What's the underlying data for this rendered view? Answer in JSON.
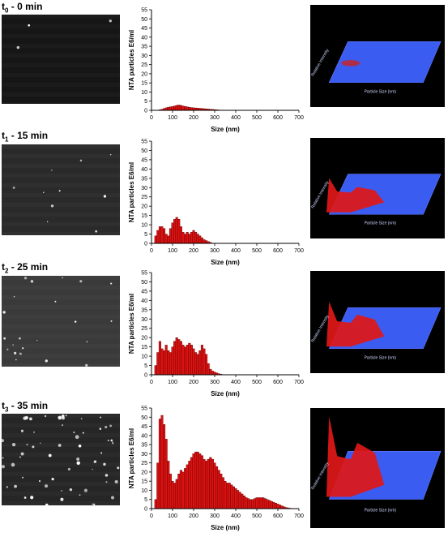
{
  "panels": [
    {
      "label_prefix": "t",
      "label_sub": "0",
      "label_rest": " - 0 min",
      "micrograph_density": "low",
      "chart_data": {
        "type": "bar",
        "xlabel": "Size (nm)",
        "ylabel": "NTA particles E6/ml",
        "xlim": [
          0,
          700
        ],
        "ylim": [
          0,
          55
        ],
        "xticks": [
          0,
          100,
          200,
          300,
          400,
          500,
          600,
          700
        ],
        "yticks": [
          0,
          5,
          10,
          15,
          20,
          25,
          30,
          35,
          40,
          45,
          50,
          55
        ],
        "bin_width": 10,
        "x": [
          40,
          50,
          60,
          70,
          80,
          90,
          100,
          110,
          120,
          130,
          140,
          150,
          160,
          170,
          180,
          190,
          200,
          210,
          220,
          230,
          240,
          250,
          260,
          270,
          280,
          290,
          300,
          310,
          320,
          330
        ],
        "values": [
          0.3,
          0.6,
          1.0,
          1.4,
          1.7,
          1.9,
          2.1,
          2.4,
          2.7,
          2.9,
          2.7,
          2.4,
          2.1,
          1.9,
          1.7,
          1.5,
          1.4,
          1.3,
          1.2,
          1.1,
          1.0,
          0.9,
          0.8,
          0.7,
          0.6,
          0.5,
          0.4,
          0.3,
          0.2,
          0.1
        ],
        "bar_color": "#dd1111"
      },
      "surface_labels": {
        "y": "Relative Intensity",
        "x": "Particle Size (nm)"
      },
      "surface_peaks": "low"
    },
    {
      "label_prefix": "t",
      "label_sub": "1",
      "label_rest": " - 15 min",
      "micrograph_density": "medium-low",
      "chart_data": {
        "type": "bar",
        "xlabel": "Size (nm)",
        "ylabel": "NTA particles E6/ml",
        "xlim": [
          0,
          700
        ],
        "ylim": [
          0,
          55
        ],
        "xticks": [
          0,
          100,
          200,
          300,
          400,
          500,
          600,
          700
        ],
        "yticks": [
          0,
          5,
          10,
          15,
          20,
          25,
          30,
          35,
          40,
          45,
          50,
          55
        ],
        "bin_width": 10,
        "x": [
          20,
          30,
          40,
          50,
          60,
          70,
          80,
          90,
          100,
          110,
          120,
          130,
          140,
          150,
          160,
          170,
          180,
          190,
          200,
          210,
          220,
          230,
          240,
          250,
          260,
          270,
          280
        ],
        "values": [
          4,
          7,
          9,
          9,
          8,
          5,
          4,
          8,
          11,
          13,
          14,
          13,
          9,
          6,
          5,
          6,
          5,
          6,
          7,
          6,
          5,
          4,
          3,
          2,
          1.5,
          1,
          0.5
        ],
        "bar_color": "#dd1111"
      },
      "surface_labels": {
        "y": "Relative Intensity",
        "x": "Particle Size (nm)"
      },
      "surface_peaks": "medium"
    },
    {
      "label_prefix": "t",
      "label_sub": "2",
      "label_rest": " - 25 min",
      "micrograph_density": "medium",
      "chart_data": {
        "type": "bar",
        "xlabel": "Size (nm)",
        "ylabel": "NTA particles E6/ml",
        "xlim": [
          0,
          700
        ],
        "ylim": [
          0,
          55
        ],
        "xticks": [
          0,
          100,
          200,
          300,
          400,
          500,
          600,
          700
        ],
        "yticks": [
          0,
          5,
          10,
          15,
          20,
          25,
          30,
          35,
          40,
          45,
          50,
          55
        ],
        "bin_width": 10,
        "x": [
          20,
          30,
          40,
          50,
          60,
          70,
          80,
          90,
          100,
          110,
          120,
          130,
          140,
          150,
          160,
          170,
          180,
          190,
          200,
          210,
          220,
          230,
          240,
          250,
          260,
          270,
          280,
          290,
          300,
          310,
          320,
          330
        ],
        "values": [
          5,
          12,
          18,
          14,
          13,
          16,
          13,
          12,
          15,
          18,
          20,
          19,
          18,
          16,
          15,
          16,
          17,
          16,
          14,
          12,
          11,
          13,
          16,
          14,
          11,
          6,
          3,
          2,
          1.5,
          1,
          0.6,
          0.3
        ],
        "bar_color": "#dd1111"
      },
      "surface_labels": {
        "y": "Relative Intensity",
        "x": "Particle Size (nm)"
      },
      "surface_peaks": "high"
    },
    {
      "label_prefix": "t",
      "label_sub": "3",
      "label_rest": " - 35 min",
      "micrograph_density": "high",
      "chart_data": {
        "type": "bar",
        "xlabel": "Size (nm)",
        "ylabel": "NTA particles E6/ml",
        "xlim": [
          0,
          700
        ],
        "ylim": [
          0,
          55
        ],
        "xticks": [
          0,
          100,
          200,
          300,
          400,
          500,
          600,
          700
        ],
        "yticks": [
          0,
          5,
          10,
          15,
          20,
          25,
          30,
          35,
          40,
          45,
          50,
          55
        ],
        "bin_width": 10,
        "x": [
          20,
          30,
          40,
          50,
          60,
          70,
          80,
          90,
          100,
          110,
          120,
          130,
          140,
          150,
          160,
          170,
          180,
          190,
          200,
          210,
          220,
          230,
          240,
          250,
          260,
          270,
          280,
          290,
          300,
          310,
          320,
          330,
          340,
          350,
          360,
          370,
          380,
          390,
          400,
          410,
          420,
          430,
          440,
          450,
          460,
          470,
          480,
          490,
          500,
          510,
          520,
          530,
          540,
          550,
          560,
          570,
          580,
          590,
          600,
          610,
          620,
          630,
          640,
          650,
          660
        ],
        "values": [
          5,
          25,
          49,
          51,
          46,
          38,
          26,
          19,
          15,
          14,
          16,
          19,
          21,
          20,
          22,
          24,
          26,
          28,
          30,
          31,
          31,
          30,
          29,
          27,
          26,
          27,
          28,
          27,
          25,
          23,
          21,
          19,
          17,
          15,
          14,
          14,
          13,
          12,
          11,
          10,
          9,
          8,
          7,
          6,
          5.5,
          5,
          5,
          5.5,
          6,
          6,
          6,
          6,
          5.5,
          5,
          4.5,
          4,
          3.5,
          3,
          2.5,
          2,
          1.5,
          1,
          0.6,
          0.4,
          0.2
        ],
        "bar_color": "#dd1111"
      },
      "surface_labels": {
        "y": "Relative Intensity",
        "x": "Particle Size (nm)"
      },
      "surface_peaks": "very-high"
    }
  ]
}
